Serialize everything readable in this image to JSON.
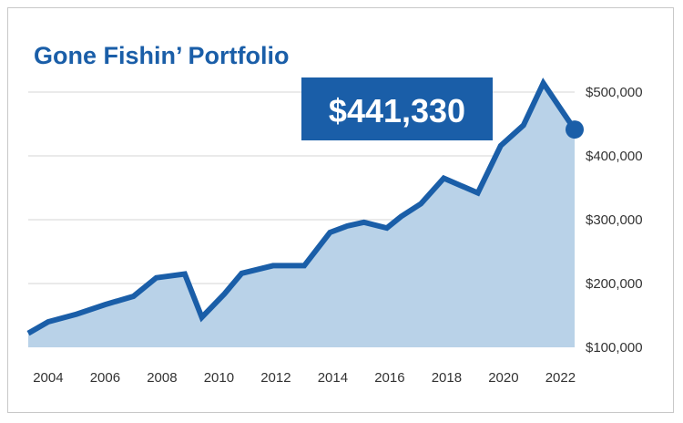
{
  "chart_data": {
    "type": "area",
    "title": "Gone Fishin’ Portfolio",
    "xlabel": "",
    "ylabel": "",
    "x": [
      2003.3,
      2004,
      2005,
      2006,
      2007,
      2007.8,
      2008.8,
      2009.4,
      2010.2,
      2010.8,
      2011.9,
      2013,
      2013.9,
      2014.5,
      2015.1,
      2015.9,
      2016.4,
      2017.1,
      2017.9,
      2019.1,
      2019.9,
      2020.7,
      2021.4,
      2022.5
    ],
    "series": [
      {
        "name": "",
        "values": [
          122000,
          140000,
          152000,
          167000,
          180000,
          209000,
          215000,
          147000,
          184000,
          216000,
          228000,
          228000,
          280000,
          290000,
          296000,
          287000,
          305000,
          325000,
          365000,
          342000,
          416000,
          448000,
          514000,
          441330
        ]
      }
    ],
    "y_ticks": [
      "$100,000",
      "$200,000",
      "$300,000",
      "$400,000",
      "$500,000"
    ],
    "x_ticks": [
      "2004",
      "2006",
      "2008",
      "2010",
      "2012",
      "2014",
      "2016",
      "2018",
      "2020",
      "2022"
    ],
    "ylim": [
      100000,
      500000
    ],
    "xlim": [
      2003.3,
      2022.5
    ],
    "grid": true,
    "y_axis_side": "right",
    "callout": "$441,330",
    "colors": {
      "line": "#1a5ea8",
      "fill": "#b9d2e8",
      "title": "#1a5ea8",
      "callout_bg": "#1a5ea8",
      "grid": "#d6d6d6"
    }
  }
}
